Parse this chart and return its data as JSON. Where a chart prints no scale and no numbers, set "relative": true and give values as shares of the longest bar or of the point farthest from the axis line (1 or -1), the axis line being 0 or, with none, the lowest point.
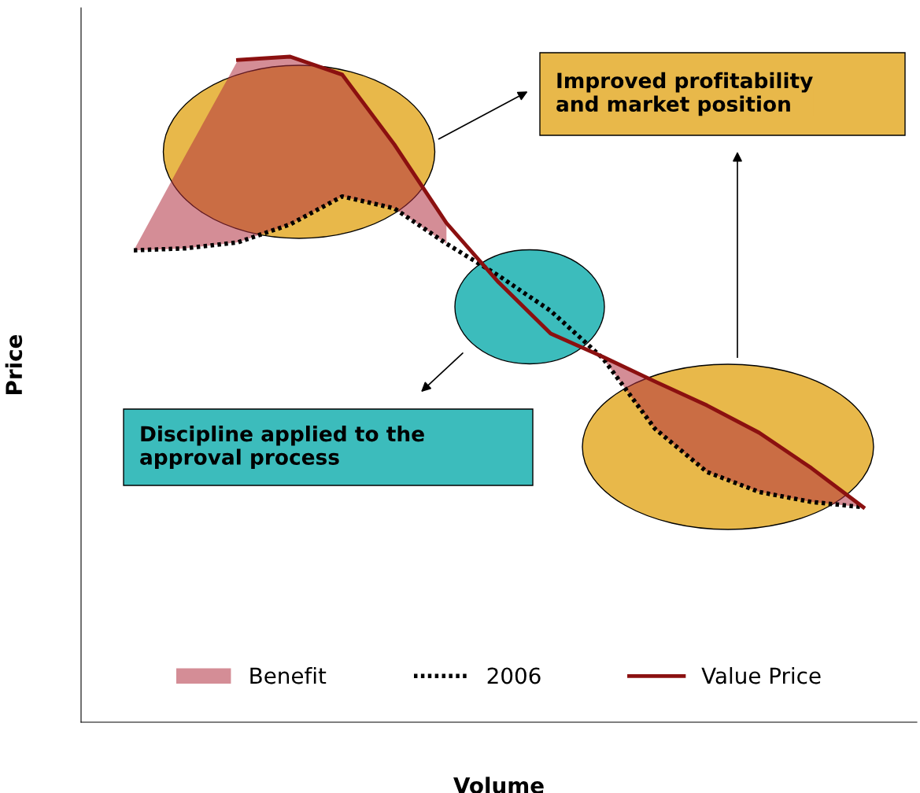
{
  "chart_data": {
    "type": "line",
    "relative": true,
    "xlabel": "Volume",
    "ylabel": "Price",
    "categories": [
      null,
      null,
      null,
      null,
      null,
      null,
      null,
      null,
      null,
      null,
      null,
      null,
      null,
      null,
      null
    ],
    "series": [
      {
        "name": "Benefit",
        "type": "area",
        "color": "#b03040",
        "values": [
          0.709,
          0.853,
          0.995,
          1.0,
          0.973,
          0.868,
          0.75,
          null,
          null,
          0.549,
          0.512,
          0.476,
          0.435,
          0.382,
          0.323
        ]
      },
      {
        "name": "2006",
        "color": "#000000",
        "line_style": "dotted",
        "values": [
          0.709,
          0.712,
          0.721,
          0.748,
          0.79,
          0.772,
          0.719,
          0.671,
          0.618,
          0.547,
          0.441,
          0.376,
          0.346,
          0.331,
          0.323
        ]
      },
      {
        "name": "Value Price",
        "type": "line",
        "color": "#8b1010",
        "line_style": "solid",
        "values": [
          null,
          null,
          0.995,
          1.0,
          0.973,
          0.868,
          0.75,
          0.661,
          0.584,
          0.549,
          0.512,
          0.476,
          0.435,
          0.382,
          0.323
        ]
      }
    ],
    "annotations": [
      "Improved profitability\nand market position",
      "Discipline applied to the\napproval process"
    ],
    "legend": "bottom",
    "marker": "none"
  }
}
